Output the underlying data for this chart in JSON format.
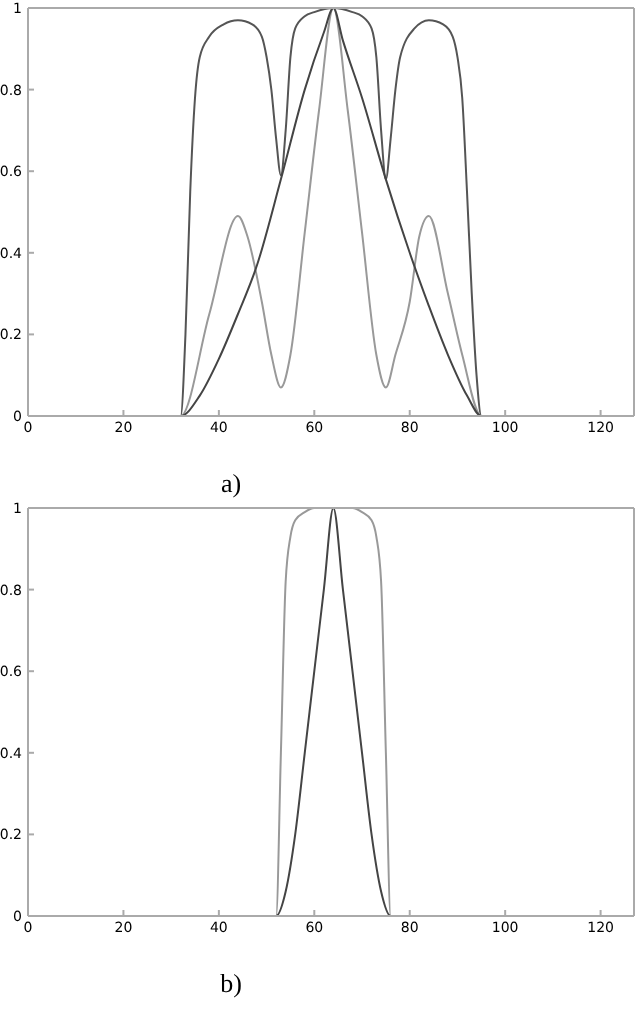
{
  "chart_data": [
    {
      "type": "line",
      "xlabel": "a)",
      "xlim": [
        0,
        127
      ],
      "xticks": [
        0,
        20,
        40,
        60,
        80,
        100,
        120
      ],
      "ylim": [
        0,
        1
      ],
      "yticks": [
        0,
        0.2,
        0.4,
        0.6,
        0.8,
        1
      ],
      "marker": "none",
      "line_style": "solid",
      "series": [
        {
          "color": "#555555",
          "x": [
            0,
            32,
            33,
            34,
            35,
            36,
            38,
            41,
            44,
            47,
            49,
            50,
            51,
            52,
            53,
            54,
            55,
            56,
            58,
            60,
            64,
            68,
            70,
            72,
            73,
            74,
            75,
            76,
            77,
            78,
            81,
            84,
            87,
            89,
            90,
            91,
            92,
            93,
            94,
            95,
            127
          ],
          "values": [
            0,
            0,
            0.2,
            0.55,
            0.78,
            0.88,
            0.93,
            0.96,
            0.97,
            0.96,
            0.93,
            0.88,
            0.8,
            0.68,
            0.59,
            0.7,
            0.88,
            0.95,
            0.98,
            0.99,
            1,
            0.99,
            0.98,
            0.95,
            0.88,
            0.7,
            0.58,
            0.68,
            0.8,
            0.88,
            0.95,
            0.97,
            0.96,
            0.93,
            0.88,
            0.78,
            0.55,
            0.3,
            0.1,
            0,
            0
          ]
        },
        {
          "color": "#999999",
          "x": [
            0,
            32,
            38,
            44,
            46,
            49,
            51,
            53,
            55,
            58,
            61,
            64,
            67,
            70,
            73,
            75,
            77,
            80,
            82,
            84,
            88,
            91,
            95,
            127
          ],
          "values": [
            0,
            0,
            0.25,
            0.49,
            0.44,
            0.28,
            0.15,
            0.07,
            0.15,
            0.45,
            0.75,
            1,
            0.75,
            0.45,
            0.15,
            0.07,
            0.15,
            0.28,
            0.44,
            0.49,
            0.3,
            0.15,
            0,
            0
          ]
        },
        {
          "color": "#444444",
          "x": [
            0,
            32,
            36,
            40,
            44,
            48,
            53,
            58,
            62,
            64,
            66,
            70,
            75,
            80,
            84,
            88,
            92,
            95,
            127
          ],
          "values": [
            0,
            0,
            0.05,
            0.14,
            0.25,
            0.37,
            0.58,
            0.8,
            0.94,
            1,
            0.92,
            0.78,
            0.58,
            0.4,
            0.27,
            0.15,
            0.05,
            0,
            0
          ]
        }
      ]
    },
    {
      "type": "line",
      "xlabel": "b)",
      "xlim": [
        0,
        127
      ],
      "xticks": [
        0,
        20,
        40,
        60,
        80,
        100,
        120
      ],
      "ylim": [
        0,
        1
      ],
      "yticks": [
        0,
        0.2,
        0.4,
        0.6,
        0.8,
        1
      ],
      "marker": "none",
      "line_style": "solid",
      "series": [
        {
          "color": "#999999",
          "x": [
            0,
            52,
            53,
            54,
            55,
            56,
            58,
            60,
            64,
            68,
            70,
            72,
            73,
            74,
            75,
            76,
            127
          ],
          "values": [
            0,
            0,
            0.4,
            0.82,
            0.93,
            0.97,
            0.99,
            1,
            1,
            1,
            0.99,
            0.97,
            0.93,
            0.82,
            0.4,
            0,
            0
          ]
        },
        {
          "color": "#444444",
          "x": [
            0,
            52,
            54,
            56,
            58,
            60,
            62,
            64,
            66,
            68,
            70,
            72,
            74,
            76,
            127
          ],
          "values": [
            0,
            0,
            0.06,
            0.2,
            0.4,
            0.6,
            0.8,
            1,
            0.8,
            0.6,
            0.4,
            0.2,
            0.06,
            0,
            0
          ]
        }
      ]
    }
  ]
}
